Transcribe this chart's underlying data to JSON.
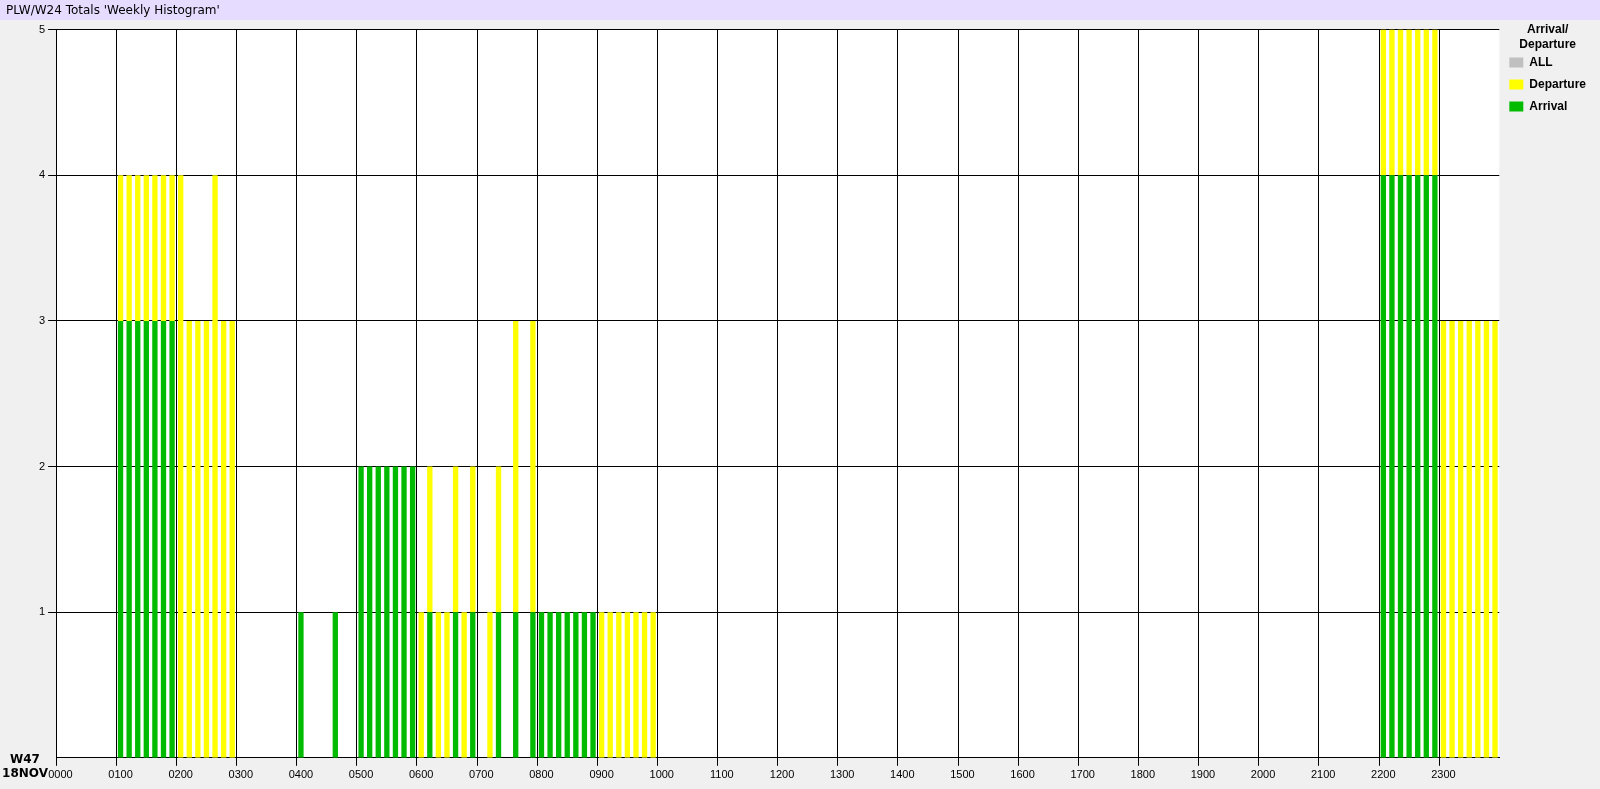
{
  "chart_data": {
    "type": "bar",
    "title": "PLW/W24 Totals 'Weekly Histogram'",
    "xlabel": "W47 18NOV",
    "legend_title": "Arrival/ Departure",
    "stacked": true,
    "grid": true,
    "legend": "top right",
    "ylim": [
      0,
      5
    ],
    "yticks": [
      1,
      2,
      3,
      4,
      5
    ],
    "categories": [
      "0000",
      null,
      null,
      null,
      null,
      null,
      null,
      "0100",
      null,
      null,
      null,
      null,
      null,
      null,
      "0200",
      null,
      null,
      null,
      null,
      null,
      null,
      "0300",
      null,
      null,
      null,
      null,
      null,
      null,
      "0400",
      null,
      null,
      null,
      null,
      null,
      null,
      "0500",
      null,
      null,
      null,
      null,
      null,
      null,
      "0600",
      null,
      null,
      null,
      null,
      null,
      null,
      "0700",
      null,
      null,
      null,
      null,
      null,
      null,
      "0800",
      null,
      null,
      null,
      null,
      null,
      null,
      "0900",
      null,
      null,
      null,
      null,
      null,
      null,
      "1000",
      null,
      null,
      null,
      null,
      null,
      null,
      "1100",
      null,
      null,
      null,
      null,
      null,
      null,
      "1200",
      null,
      null,
      null,
      null,
      null,
      null,
      "1300",
      null,
      null,
      null,
      null,
      null,
      null,
      "1400",
      null,
      null,
      null,
      null,
      null,
      null,
      "1500",
      null,
      null,
      null,
      null,
      null,
      null,
      "1600",
      null,
      null,
      null,
      null,
      null,
      null,
      "1700",
      null,
      null,
      null,
      null,
      null,
      null,
      "1800",
      null,
      null,
      null,
      null,
      null,
      null,
      "1900",
      null,
      null,
      null,
      null,
      null,
      null,
      "2000",
      null,
      null,
      null,
      null,
      null,
      null,
      "2100",
      null,
      null,
      null,
      null,
      null,
      null,
      "2200",
      null,
      null,
      null,
      null,
      null,
      null,
      "2300",
      null,
      null,
      null,
      null,
      null,
      null
    ],
    "series": [
      {
        "name": "Arrival",
        "color": "#00bb00",
        "values": [
          0,
          0,
          0,
          0,
          0,
          0,
          0,
          3,
          3,
          3,
          3,
          3,
          3,
          3,
          0,
          0,
          0,
          0,
          0,
          0,
          0,
          0,
          0,
          0,
          0,
          0,
          0,
          0,
          1,
          0,
          0,
          0,
          1,
          0,
          0,
          2,
          2,
          2,
          2,
          2,
          2,
          2,
          0,
          1,
          0,
          0,
          1,
          0,
          1,
          0,
          0,
          1,
          0,
          1,
          0,
          1,
          1,
          1,
          1,
          1,
          1,
          1,
          1,
          0,
          0,
          0,
          0,
          0,
          0,
          0,
          0,
          0,
          0,
          0,
          0,
          0,
          0,
          0,
          0,
          0,
          0,
          0,
          0,
          0,
          0,
          0,
          0,
          0,
          0,
          0,
          0,
          0,
          0,
          0,
          0,
          0,
          0,
          0,
          0,
          0,
          0,
          0,
          0,
          0,
          0,
          0,
          0,
          0,
          0,
          0,
          0,
          0,
          0,
          0,
          0,
          0,
          0,
          0,
          0,
          0,
          0,
          0,
          0,
          0,
          0,
          0,
          0,
          0,
          0,
          0,
          0,
          0,
          0,
          0,
          0,
          0,
          0,
          0,
          0,
          0,
          0,
          0,
          0,
          0,
          0,
          0,
          0,
          0,
          0,
          0,
          0,
          0,
          0,
          0,
          4,
          4,
          4,
          4,
          4,
          4,
          4,
          0,
          0,
          0,
          0,
          0,
          0,
          0
        ]
      },
      {
        "name": "Departure",
        "color": "#ffff00",
        "values": [
          0,
          0,
          0,
          0,
          0,
          0,
          0,
          1,
          1,
          1,
          1,
          1,
          1,
          1,
          4,
          3,
          3,
          3,
          4,
          3,
          3,
          0,
          0,
          0,
          0,
          0,
          0,
          0,
          0,
          0,
          0,
          0,
          0,
          0,
          0,
          0,
          0,
          0,
          0,
          0,
          0,
          0,
          1,
          1,
          1,
          1,
          1,
          1,
          1,
          0,
          1,
          1,
          0,
          2,
          0,
          2,
          0,
          0,
          0,
          0,
          0,
          0,
          0,
          1,
          1,
          1,
          1,
          1,
          1,
          1,
          0,
          0,
          0,
          0,
          0,
          0,
          0,
          0,
          0,
          0,
          0,
          0,
          0,
          0,
          0,
          0,
          0,
          0,
          0,
          0,
          0,
          0,
          0,
          0,
          0,
          0,
          0,
          0,
          0,
          0,
          0,
          0,
          0,
          0,
          0,
          0,
          0,
          0,
          0,
          0,
          0,
          0,
          0,
          0,
          0,
          0,
          0,
          0,
          0,
          0,
          0,
          0,
          0,
          0,
          0,
          0,
          0,
          0,
          0,
          0,
          0,
          0,
          0,
          0,
          0,
          0,
          0,
          0,
          0,
          0,
          0,
          0,
          0,
          0,
          0,
          0,
          0,
          0,
          0,
          0,
          0,
          0,
          0,
          0,
          1,
          1,
          1,
          1,
          1,
          1,
          1,
          3,
          3,
          3,
          3,
          3,
          3,
          3
        ]
      },
      {
        "name": "ALL",
        "color": "#c0c0c0",
        "values": [
          null,
          null,
          null,
          null,
          null,
          null,
          null,
          null,
          null,
          null,
          null,
          null,
          null,
          null,
          null,
          null,
          null,
          null,
          null,
          null,
          null,
          null,
          null,
          null,
          null,
          null,
          null,
          null,
          null,
          null,
          null,
          null,
          null,
          null,
          null,
          null,
          null,
          null,
          null,
          null,
          null,
          null,
          null,
          null,
          null,
          null,
          null,
          null,
          null,
          null,
          null,
          null,
          null,
          null,
          null,
          null,
          null,
          null,
          null,
          null,
          null,
          null,
          null,
          null,
          null,
          null,
          null,
          null,
          null,
          null,
          null,
          null,
          null,
          null,
          null,
          null,
          null,
          null,
          null,
          null,
          null,
          null,
          null,
          null,
          null,
          null,
          null,
          null,
          null,
          null,
          null,
          null,
          null,
          null,
          null,
          null,
          null,
          null,
          null,
          null,
          null,
          null,
          null,
          null,
          null,
          null,
          null,
          null,
          null,
          null,
          null,
          null,
          null,
          null,
          null,
          null,
          null,
          null,
          null,
          null,
          null,
          null,
          null,
          null,
          null,
          null,
          null,
          null,
          null,
          null,
          null,
          null,
          null,
          null,
          null,
          null,
          null,
          null,
          null,
          null,
          null,
          null,
          null,
          null,
          null,
          null,
          null,
          null,
          null,
          null,
          null,
          null,
          null,
          null,
          null,
          null,
          null,
          null,
          null,
          null,
          null,
          null,
          null,
          null,
          null,
          null,
          null,
          null
        ]
      }
    ]
  }
}
